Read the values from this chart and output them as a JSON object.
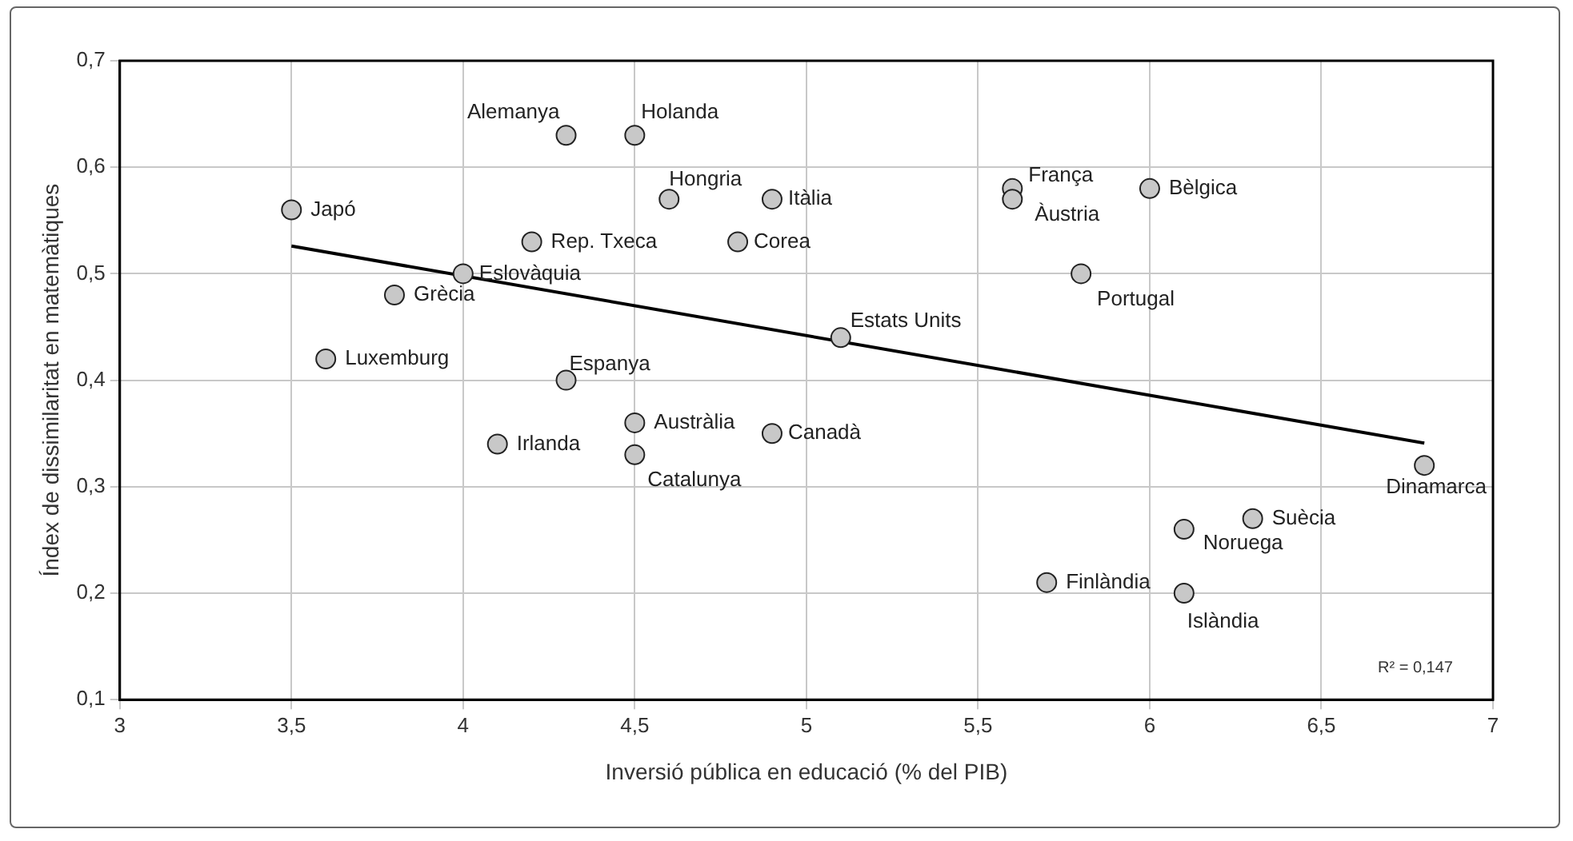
{
  "chart_data": {
    "type": "scatter",
    "xlabel": "Inversió pública en educació (% del PIB)",
    "ylabel": "Índex de dissimilaritat en matemàtiques",
    "xlim": [
      3,
      7
    ],
    "ylim": [
      0.1,
      0.7
    ],
    "xticks": [
      3,
      {
        "value": 3.5,
        "label": "3,5"
      },
      4,
      {
        "value": 4.5,
        "label": "4,5"
      },
      5,
      {
        "value": 5.5,
        "label": "5,5"
      },
      6,
      {
        "value": 6.5,
        "label": "6,5"
      },
      7
    ],
    "yticks": [
      {
        "value": 0.1,
        "label": "0,1"
      },
      {
        "value": 0.2,
        "label": "0,2"
      },
      {
        "value": 0.3,
        "label": "0,3"
      },
      {
        "value": 0.4,
        "label": "0,4"
      },
      {
        "value": 0.5,
        "label": "0,5"
      },
      {
        "value": 0.6,
        "label": "0,6"
      },
      {
        "value": 0.7,
        "label": "0,7"
      }
    ],
    "grid": true,
    "legend": false,
    "series": [
      {
        "marker": "circle",
        "color": "#c8c8c8",
        "x": [
          3.5,
          4.3,
          4.5,
          4.6,
          4.9,
          4.2,
          4.8,
          4.0,
          3.8,
          3.6,
          4.3,
          4.5,
          4.1,
          4.5,
          4.9,
          5.1,
          5.6,
          5.6,
          6.0,
          5.8,
          6.8,
          6.3,
          6.1,
          5.7,
          6.1
        ],
        "values": [
          0.56,
          0.63,
          0.63,
          0.57,
          0.57,
          0.53,
          0.53,
          0.5,
          0.48,
          0.42,
          0.4,
          0.36,
          0.34,
          0.33,
          0.35,
          0.44,
          0.58,
          0.57,
          0.58,
          0.5,
          0.32,
          0.27,
          0.26,
          0.21,
          0.2
        ]
      },
      {
        "type": "line",
        "marker": "none",
        "color": "#000000",
        "x": [
          3.5,
          6.8
        ],
        "values": [
          0.526,
          0.341
        ]
      }
    ],
    "annotations": [
      {
        "text": "Japó",
        "x": 3.5,
        "y": 0.56
      },
      {
        "text": "Alemanya",
        "x": 4.3,
        "y": 0.63
      },
      {
        "text": "Holanda",
        "x": 4.5,
        "y": 0.63
      },
      {
        "text": "Hongria",
        "x": 4.6,
        "y": 0.57
      },
      {
        "text": "Itàlia",
        "x": 4.9,
        "y": 0.57
      },
      {
        "text": "Rep. Txeca",
        "x": 4.2,
        "y": 0.53
      },
      {
        "text": "Corea",
        "x": 4.8,
        "y": 0.53
      },
      {
        "text": "Eslovàquia",
        "x": 4.0,
        "y": 0.5
      },
      {
        "text": "Grècia",
        "x": 3.8,
        "y": 0.48
      },
      {
        "text": "Luxemburg",
        "x": 3.6,
        "y": 0.42
      },
      {
        "text": "Espanya",
        "x": 4.3,
        "y": 0.4
      },
      {
        "text": "Austràlia",
        "x": 4.5,
        "y": 0.36
      },
      {
        "text": "Irlanda",
        "x": 4.1,
        "y": 0.34
      },
      {
        "text": "Catalunya",
        "x": 4.5,
        "y": 0.33
      },
      {
        "text": "Canadà",
        "x": 4.9,
        "y": 0.35
      },
      {
        "text": "Estats Units",
        "x": 5.1,
        "y": 0.44
      },
      {
        "text": "França",
        "x": 5.6,
        "y": 0.58
      },
      {
        "text": "Àustria",
        "x": 5.6,
        "y": 0.57
      },
      {
        "text": "Bèlgica",
        "x": 6.0,
        "y": 0.58
      },
      {
        "text": "Portugal",
        "x": 5.8,
        "y": 0.5
      },
      {
        "text": "Dinamarca",
        "x": 6.8,
        "y": 0.32
      },
      {
        "text": "Suècia",
        "x": 6.3,
        "y": 0.27
      },
      {
        "text": "Noruega",
        "x": 6.1,
        "y": 0.26
      },
      {
        "text": "Finlàndia",
        "x": 5.7,
        "y": 0.21
      },
      {
        "text": "Islàndia",
        "x": 6.1,
        "y": 0.2
      },
      "R² = 0,147"
    ]
  }
}
